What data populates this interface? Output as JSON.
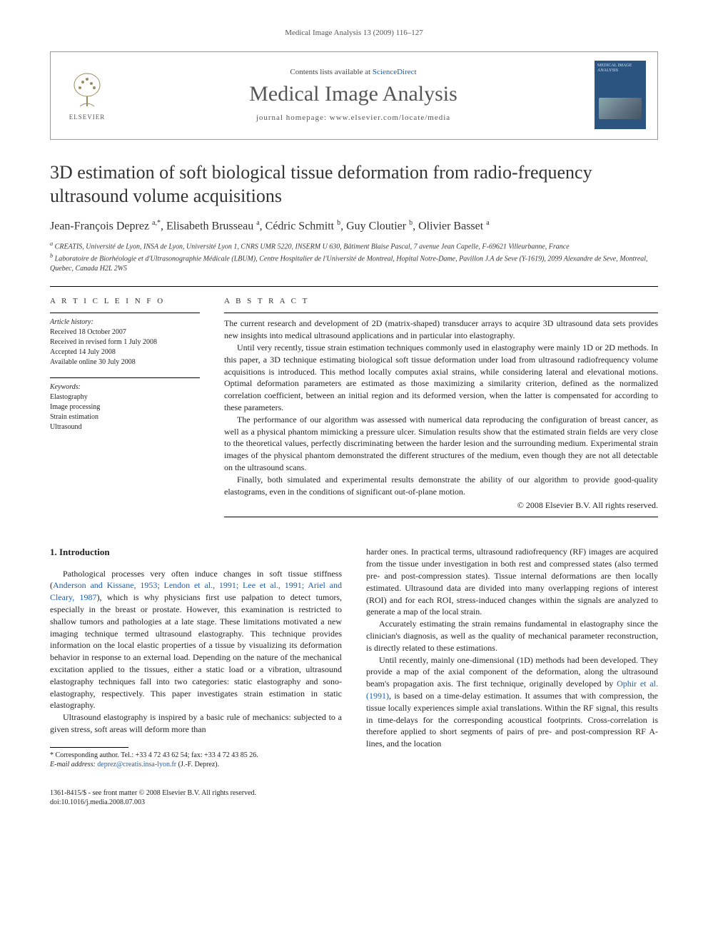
{
  "running_header": "Medical Image Analysis 13 (2009) 116–127",
  "masthead": {
    "contents_prefix": "Contents lists available at ",
    "contents_link": "ScienceDirect",
    "journal_title": "Medical Image Analysis",
    "homepage_label": "journal homepage: www.elsevier.com/locate/media",
    "elsevier_label": "ELSEVIER",
    "cover_text": "MEDICAL IMAGE ANALYSIS"
  },
  "article": {
    "title": "3D estimation of soft biological tissue deformation from radio-frequency ultrasound volume acquisitions",
    "authors_html": "Jean-François Deprez <sup>a,*</sup>, Elisabeth Brusseau <sup>a</sup>, Cédric Schmitt <sup>b</sup>, Guy Cloutier <sup>b</sup>, Olivier Basset <sup>a</sup>",
    "affiliations": [
      "a CREATIS, Université de Lyon, INSA de Lyon, Université Lyon 1, CNRS UMR 5220, INSERM U 630, Bâtiment Blaise Pascal, 7 avenue Jean Capelle, F-69621 Villeurbanne, France",
      "b Laboratoire de Biorhéologie et d'Ultrasonographie Médicale (LBUM), Centre Hospitalier de l'Université de Montreal, Hopital Notre-Dame, Pavillon J.A de Seve (Y-1619), 2099 Alexandre de Seve, Montreal, Quebec, Canada H2L 2W5"
    ]
  },
  "info": {
    "heading": "A R T I C L E   I N F O",
    "history_title": "Article history:",
    "history": [
      "Received 18 October 2007",
      "Received in revised form 1 July 2008",
      "Accepted 14 July 2008",
      "Available online 30 July 2008"
    ],
    "keywords_title": "Keywords:",
    "keywords": [
      "Elastography",
      "Image processing",
      "Strain estimation",
      "Ultrasound"
    ]
  },
  "abstract": {
    "heading": "A B S T R A C T",
    "paragraphs": [
      "The current research and development of 2D (matrix-shaped) transducer arrays to acquire 3D ultrasound data sets provides new insights into medical ultrasound applications and in particular into elastography.",
      "Until very recently, tissue strain estimation techniques commonly used in elastography were mainly 1D or 2D methods. In this paper, a 3D technique estimating biological soft tissue deformation under load from ultrasound radiofrequency volume acquisitions is introduced. This method locally computes axial strains, while considering lateral and elevational motions. Optimal deformation parameters are estimated as those maximizing a similarity criterion, defined as the normalized correlation coefficient, between an initial region and its deformed version, when the latter is compensated for according to these parameters.",
      "The performance of our algorithm was assessed with numerical data reproducing the configuration of breast cancer, as well as a physical phantom mimicking a pressure ulcer. Simulation results show that the estimated strain fields are very close to the theoretical values, perfectly discriminating between the harder lesion and the surrounding medium. Experimental strain images of the physical phantom demonstrated the different structures of the medium, even though they are not all detectable on the ultrasound scans.",
      "Finally, both simulated and experimental results demonstrate the ability of our algorithm to provide good-quality elastograms, even in the conditions of significant out-of-plane motion."
    ],
    "copyright": "© 2008 Elsevier B.V. All rights reserved."
  },
  "body": {
    "section_heading": "1. Introduction",
    "left_paragraphs": [
      "Pathological processes very often induce changes in soft tissue stiffness (<a class=\"ref-link\" href=\"#\">Anderson and Kissane, 1953; Lendon et al., 1991; Lee et al., 1991; Ariel and Cleary, 1987</a>), which is why physicians first use palpation to detect tumors, especially in the breast or prostate. However, this examination is restricted to shallow tumors and pathologies at a late stage. These limitations motivated a new imaging technique termed ultrasound elastography. This technique provides information on the local elastic properties of a tissue by visualizing its deformation behavior in response to an external load. Depending on the nature of the mechanical excitation applied to the tissues, either a static load or a vibration, ultrasound elastography techniques fall into two categories: static elastography and sono-elastography, respectively. This paper investigates strain estimation in static elastography.",
      "Ultrasound elastography is inspired by a basic rule of mechanics: subjected to a given stress, soft areas will deform more than"
    ],
    "right_paragraphs": [
      "harder ones. In practical terms, ultrasound radiofrequency (RF) images are acquired from the tissue under investigation in both rest and compressed states (also termed pre- and post-compression states). Tissue internal deformations are then locally estimated. Ultrasound data are divided into many overlapping regions of interest (ROI) and for each ROI, stress-induced changes within the signals are analyzed to generate a map of the local strain.",
      "Accurately estimating the strain remains fundamental in elastography since the clinician's diagnosis, as well as the quality of mechanical parameter reconstruction, is directly related to these estimations.",
      "Until recently, mainly one-dimensional (1D) methods had been developed. They provide a map of the axial component of the deformation, along the ultrasound beam's propagation axis. The first technique, originally developed by <a class=\"ref-link\" href=\"#\">Ophir et al. (1991)</a>, is based on a time-delay estimation. It assumes that with compression, the tissue locally experiences simple axial translations. Within the RF signal, this results in time-delays for the corresponding acoustical footprints. Cross-correlation is therefore applied to short segments of pairs of pre- and post-compression RF A-lines, and the location"
    ]
  },
  "footnote": {
    "corresponding": "* Corresponding author. Tel.: +33 4 72 43 62 54; fax: +33 4 72 43 85 26.",
    "email_label": "E-mail address:",
    "email": "deprez@creatis.insa-lyon.fr",
    "email_suffix": " (J.-F. Deprez)."
  },
  "footer": {
    "line1": "1361-8415/$ - see front matter © 2008 Elsevier B.V. All rights reserved.",
    "line2": "doi:10.1016/j.media.2008.07.003"
  },
  "colors": {
    "link": "#1a5fb4",
    "text": "#222222",
    "journal_title": "#555555",
    "cover_bg": "#2b5580"
  }
}
